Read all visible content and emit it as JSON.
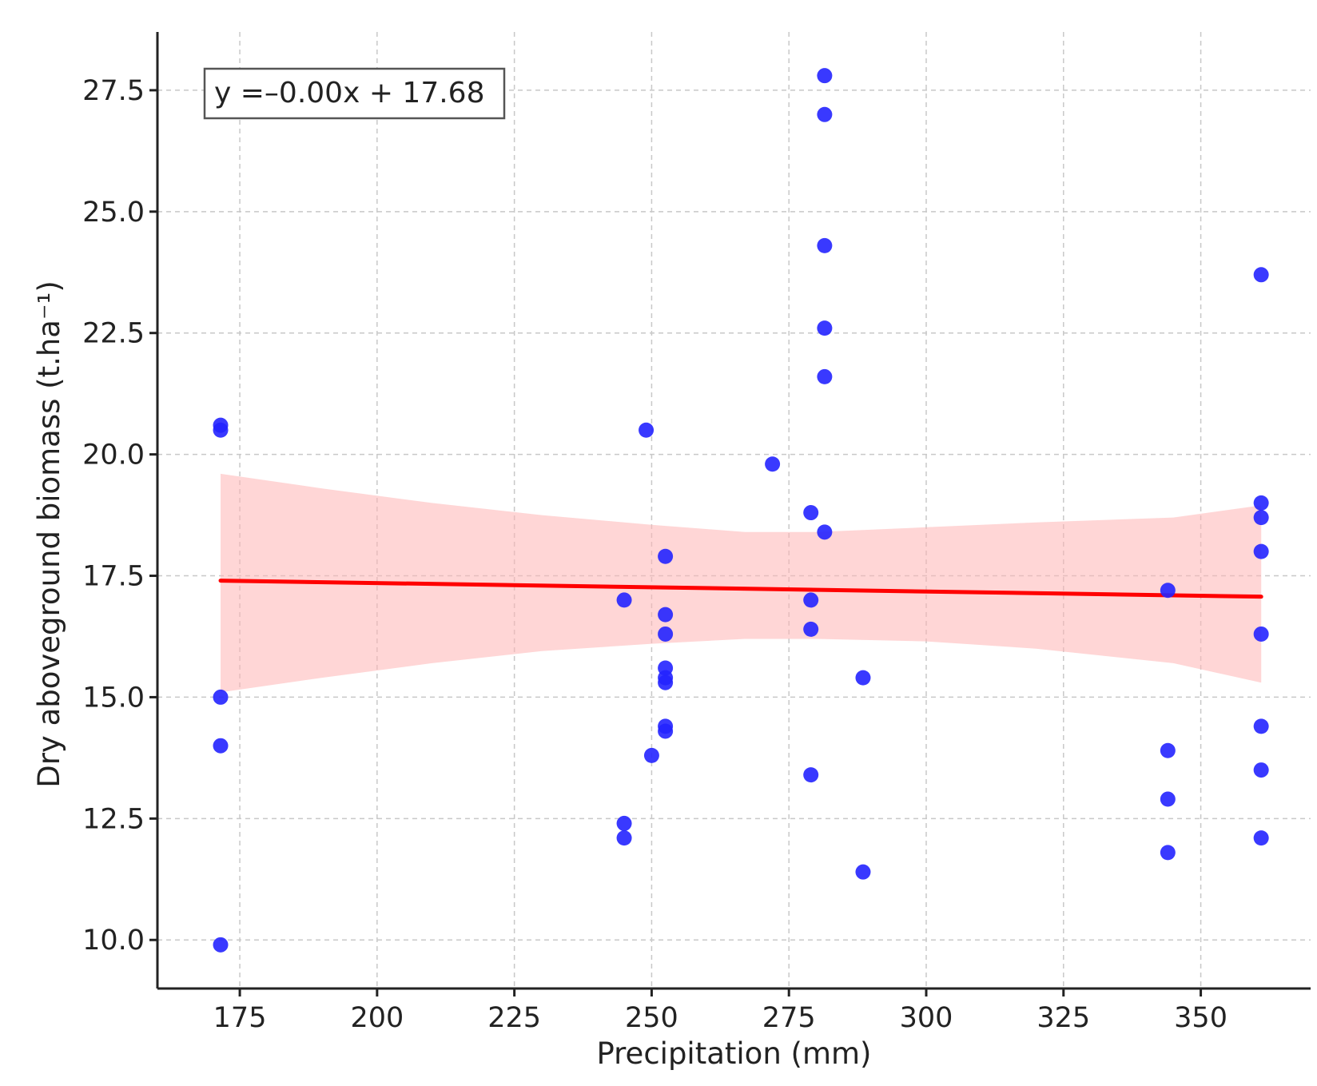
{
  "chart_data": {
    "type": "scatter",
    "xlabel": "Precipitation (mm)",
    "ylabel": "Dry aboveground biomass (t.ha⁻¹)",
    "xlim": [
      160,
      370
    ],
    "ylim": [
      9.0,
      28.7
    ],
    "x_ticks": [
      175,
      200,
      225,
      250,
      275,
      300,
      325,
      350
    ],
    "x_tick_labels": [
      "175",
      "200",
      "225",
      "250",
      "275",
      "300",
      "325",
      "350"
    ],
    "y_ticks": [
      10.0,
      12.5,
      15.0,
      17.5,
      20.0,
      22.5,
      25.0,
      27.5
    ],
    "y_tick_labels": [
      "10.0",
      "12.5",
      "15.0",
      "17.5",
      "20.0",
      "22.5",
      "25.0",
      "27.5"
    ],
    "grid": true,
    "annotation": "y =–0.00x + 17.68",
    "annotation_position": "top-left",
    "colors": {
      "points": "#2323ff",
      "fit_line": "#ff0000",
      "confidence_band": "#ffb4b4"
    },
    "points": [
      {
        "x": 171.5,
        "y": 20.6
      },
      {
        "x": 171.5,
        "y": 20.5
      },
      {
        "x": 171.5,
        "y": 15.0
      },
      {
        "x": 171.5,
        "y": 14.0
      },
      {
        "x": 171.5,
        "y": 9.9
      },
      {
        "x": 245,
        "y": 17.0
      },
      {
        "x": 245,
        "y": 12.4
      },
      {
        "x": 245,
        "y": 12.1
      },
      {
        "x": 249,
        "y": 20.5
      },
      {
        "x": 250,
        "y": 13.8
      },
      {
        "x": 252.5,
        "y": 17.9
      },
      {
        "x": 252.5,
        "y": 16.7
      },
      {
        "x": 252.5,
        "y": 16.3
      },
      {
        "x": 252.5,
        "y": 15.6
      },
      {
        "x": 252.5,
        "y": 15.4
      },
      {
        "x": 252.5,
        "y": 15.3
      },
      {
        "x": 252.5,
        "y": 14.4
      },
      {
        "x": 252.5,
        "y": 14.3
      },
      {
        "x": 272,
        "y": 19.8
      },
      {
        "x": 279,
        "y": 18.8
      },
      {
        "x": 279,
        "y": 17.0
      },
      {
        "x": 279,
        "y": 16.4
      },
      {
        "x": 279,
        "y": 13.4
      },
      {
        "x": 281.5,
        "y": 27.8
      },
      {
        "x": 281.5,
        "y": 27.0
      },
      {
        "x": 281.5,
        "y": 24.3
      },
      {
        "x": 281.5,
        "y": 22.6
      },
      {
        "x": 281.5,
        "y": 21.6
      },
      {
        "x": 281.5,
        "y": 18.4
      },
      {
        "x": 288.5,
        "y": 15.4
      },
      {
        "x": 288.5,
        "y": 11.4
      },
      {
        "x": 344,
        "y": 17.2
      },
      {
        "x": 344,
        "y": 13.9
      },
      {
        "x": 344,
        "y": 12.9
      },
      {
        "x": 344,
        "y": 11.8
      },
      {
        "x": 361,
        "y": 23.7
      },
      {
        "x": 361,
        "y": 19.0
      },
      {
        "x": 361,
        "y": 18.7
      },
      {
        "x": 361,
        "y": 18.0
      },
      {
        "x": 361,
        "y": 16.3
      },
      {
        "x": 361,
        "y": 14.4
      },
      {
        "x": 361,
        "y": 13.5
      },
      {
        "x": 361,
        "y": 12.1
      }
    ],
    "fit_line": {
      "x": [
        171.5,
        361
      ],
      "y": [
        17.4,
        17.07
      ]
    },
    "confidence_band": {
      "x": [
        171.5,
        190,
        210,
        230,
        250,
        267,
        280,
        300,
        320,
        345,
        361
      ],
      "upper": [
        19.6,
        19.3,
        19.0,
        18.75,
        18.55,
        18.4,
        18.4,
        18.5,
        18.6,
        18.7,
        18.95
      ],
      "lower": [
        15.1,
        15.4,
        15.7,
        15.95,
        16.1,
        16.2,
        16.2,
        16.15,
        16.0,
        15.7,
        15.3
      ]
    }
  }
}
